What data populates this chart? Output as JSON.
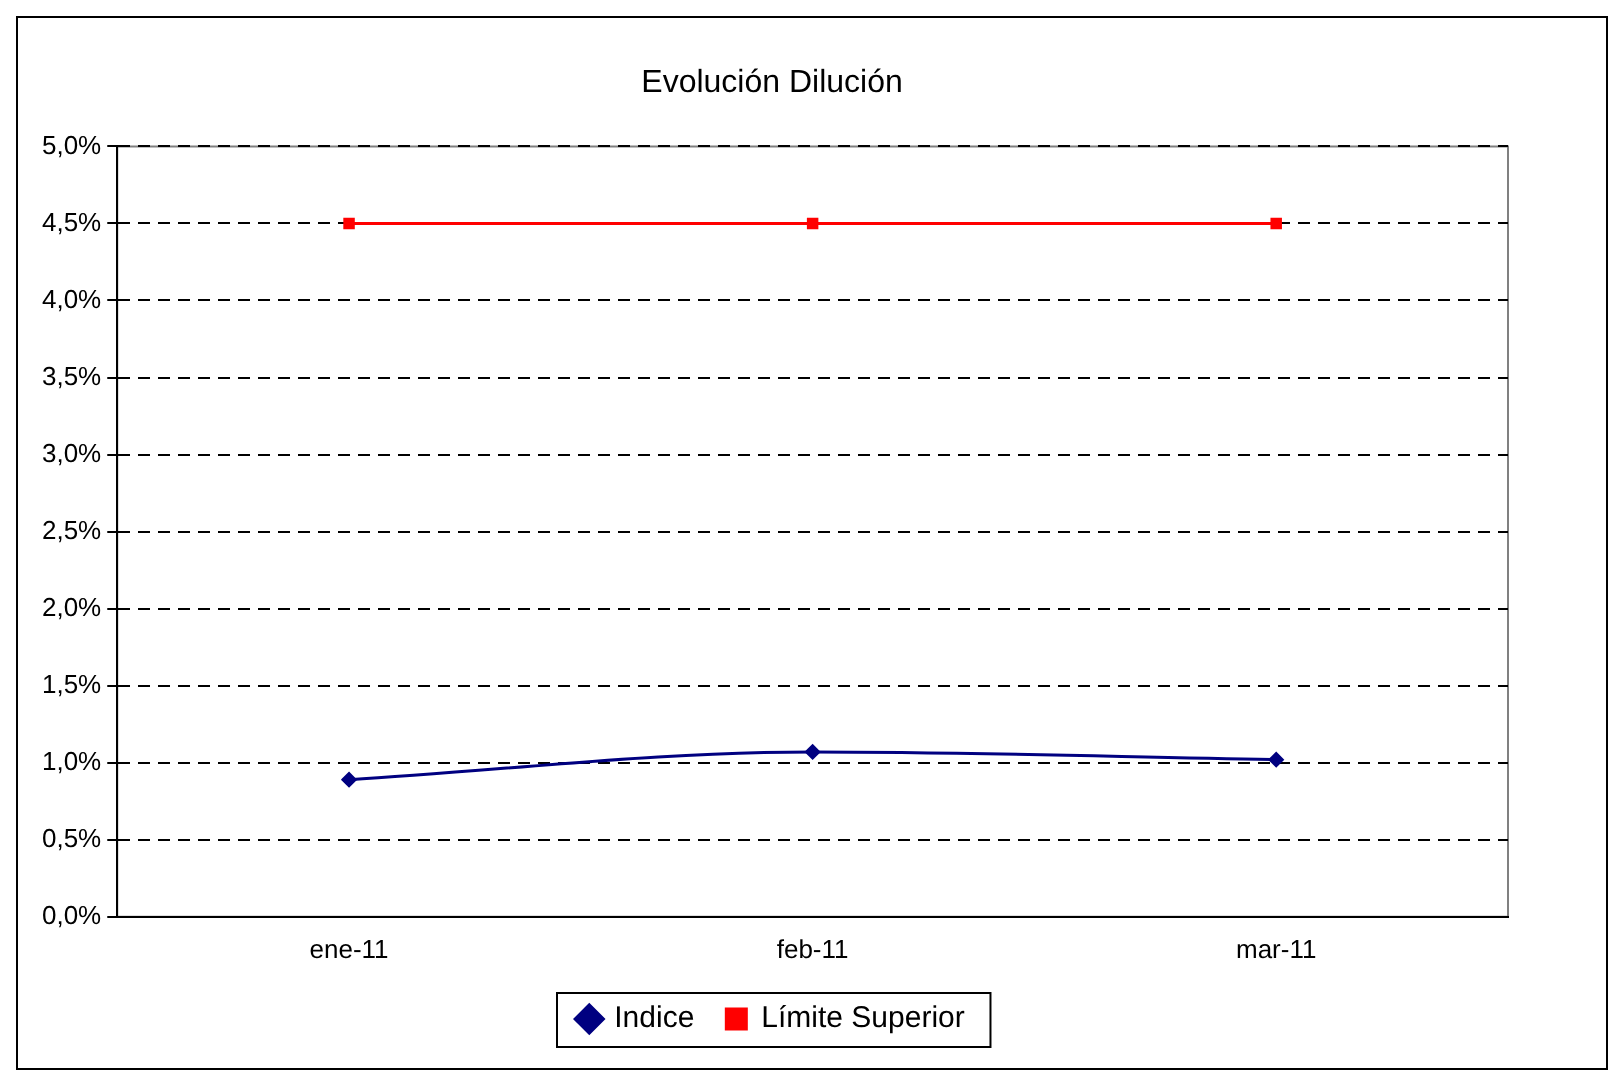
{
  "chart_data": {
    "type": "line",
    "title": "Evolución Dilución",
    "categories": [
      "ene-11",
      "feb-11",
      "mar-11"
    ],
    "series": [
      {
        "name": "Indice",
        "color": "#000080",
        "values": [
          0.89,
          1.07,
          1.02
        ],
        "marker": "diamond"
      },
      {
        "name": "Límite Superior",
        "color": "#ff0000",
        "values": [
          4.5,
          4.5,
          4.5
        ],
        "marker": "square"
      }
    ],
    "ylim": [
      0,
      5
    ],
    "yticks": [
      {
        "value": 0,
        "label": "0,0%"
      },
      {
        "value": 0.5,
        "label": "0,5%"
      },
      {
        "value": 1,
        "label": "1,0%"
      },
      {
        "value": 1.5,
        "label": "1,5%"
      },
      {
        "value": 2,
        "label": "2,0%"
      },
      {
        "value": 2.5,
        "label": "2,5%"
      },
      {
        "value": 3,
        "label": "3,0%"
      },
      {
        "value": 3.5,
        "label": "3,5%"
      },
      {
        "value": 4,
        "label": "4,0%"
      },
      {
        "value": 4.5,
        "label": "4,5%"
      },
      {
        "value": 5,
        "label": "5,0%"
      }
    ],
    "grid": "y",
    "legend": "bottom"
  }
}
